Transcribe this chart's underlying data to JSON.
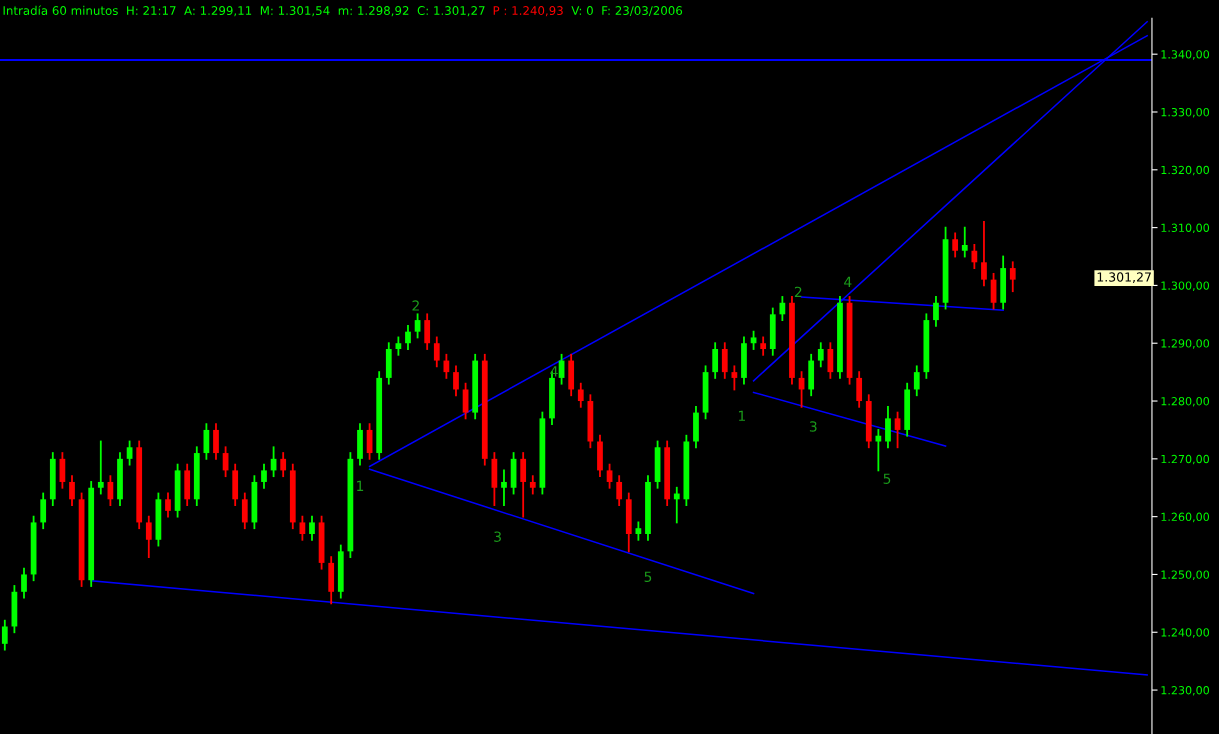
{
  "chart_data": {
    "type": "candlestick",
    "title": "Intradía 60 minutos  H: 21:17  A: 1.299,11  M: 1.301,54  m: 1.298,92  C: 1.301,27",
    "categories": [
      null,
      null,
      null,
      null,
      null,
      null,
      null,
      null,
      null,
      null,
      null,
      null,
      null,
      null,
      null,
      null,
      null,
      null,
      null,
      null,
      null,
      null,
      null,
      null,
      null,
      null,
      null,
      null,
      null,
      null,
      null,
      null,
      null,
      null,
      null,
      null,
      null,
      null,
      null,
      null,
      null,
      null,
      null,
      null,
      null,
      null,
      null,
      null,
      null,
      null,
      null,
      null,
      null,
      null,
      null,
      null,
      null,
      null,
      null,
      null,
      null,
      null,
      null,
      null,
      null,
      null,
      null,
      null,
      null,
      null,
      null,
      null,
      null,
      null,
      null,
      null,
      null,
      null,
      null,
      null,
      null,
      null,
      null,
      null,
      null,
      null,
      null,
      null,
      null,
      null,
      null,
      null,
      null,
      null,
      null,
      null,
      null,
      null,
      null,
      null,
      null,
      null,
      null,
      null,
      null,
      null,
      null,
      null,
      null,
      null,
      null,
      null,
      null,
      null,
      null,
      null,
      null,
      null,
      null,
      null
    ],
    "ohlc": [
      [
        1238,
        1242,
        1237,
        1241
      ],
      [
        1241,
        1248,
        1240,
        1247
      ],
      [
        1247,
        1251,
        1246,
        1250
      ],
      [
        1250,
        1260,
        1249,
        1259
      ],
      [
        1259,
        1264,
        1258,
        1263
      ],
      [
        1263,
        1271,
        1262,
        1270
      ],
      [
        1270,
        1271,
        1265,
        1266
      ],
      [
        1266,
        1267,
        1262,
        1263
      ],
      [
        1263,
        1264,
        1248,
        1249
      ],
      [
        1249,
        1266,
        1248,
        1265
      ],
      [
        1265,
        1273,
        1264,
        1266
      ],
      [
        1266,
        1267,
        1262,
        1263
      ],
      [
        1263,
        1271,
        1262,
        1270
      ],
      [
        1270,
        1273,
        1269,
        1272
      ],
      [
        1272,
        1273,
        1258,
        1259
      ],
      [
        1259,
        1260,
        1253,
        1256
      ],
      [
        1256,
        1264,
        1255,
        1263
      ],
      [
        1263,
        1264,
        1260,
        1261
      ],
      [
        1261,
        1269,
        1260,
        1268
      ],
      [
        1268,
        1269,
        1262,
        1263
      ],
      [
        1263,
        1272,
        1262,
        1271
      ],
      [
        1271,
        1276,
        1270,
        1275
      ],
      [
        1275,
        1276,
        1270,
        1271
      ],
      [
        1271,
        1272,
        1267,
        1268
      ],
      [
        1268,
        1269,
        1262,
        1263
      ],
      [
        1263,
        1264,
        1258,
        1259
      ],
      [
        1259,
        1267,
        1258,
        1266
      ],
      [
        1266,
        1269,
        1265,
        1268
      ],
      [
        1268,
        1272,
        1267,
        1270
      ],
      [
        1270,
        1271,
        1267,
        1268
      ],
      [
        1268,
        1269,
        1258,
        1259
      ],
      [
        1259,
        1260,
        1256,
        1257
      ],
      [
        1257,
        1260,
        1256,
        1259
      ],
      [
        1259,
        1260,
        1251,
        1252
      ],
      [
        1252,
        1253,
        1245,
        1247
      ],
      [
        1247,
        1255,
        1246,
        1254
      ],
      [
        1254,
        1271,
        1253,
        1270
      ],
      [
        1270,
        1276,
        1269,
        1275
      ],
      [
        1275,
        1276,
        1270,
        1271
      ],
      [
        1271,
        1285,
        1270,
        1284
      ],
      [
        1284,
        1290,
        1283,
        1289
      ],
      [
        1289,
        1291,
        1288,
        1290
      ],
      [
        1290,
        1293,
        1289,
        1292
      ],
      [
        1292,
        1295,
        1291,
        1294
      ],
      [
        1294,
        1295,
        1289,
        1290
      ],
      [
        1290,
        1291,
        1286,
        1287
      ],
      [
        1287,
        1288,
        1284,
        1285
      ],
      [
        1285,
        1286,
        1281,
        1282
      ],
      [
        1282,
        1283,
        1277,
        1278
      ],
      [
        1278,
        1288,
        1277,
        1287
      ],
      [
        1287,
        1288,
        1269,
        1270
      ],
      [
        1270,
        1271,
        1262,
        1265
      ],
      [
        1265,
        1268,
        1262,
        1266
      ],
      [
        1265,
        1271,
        1264,
        1270
      ],
      [
        1270,
        1271,
        1260,
        1266
      ],
      [
        1266,
        1267,
        1264,
        1265
      ],
      [
        1265,
        1278,
        1264,
        1277
      ],
      [
        1277,
        1285,
        1276,
        1284
      ],
      [
        1284,
        1288,
        1283,
        1287
      ],
      [
        1287,
        1288,
        1281,
        1282
      ],
      [
        1282,
        1283,
        1279,
        1280
      ],
      [
        1280,
        1281,
        1272,
        1273
      ],
      [
        1273,
        1274,
        1267,
        1268
      ],
      [
        1268,
        1269,
        1265,
        1266
      ],
      [
        1266,
        1267,
        1262,
        1263
      ],
      [
        1263,
        1264,
        1254,
        1257
      ],
      [
        1257,
        1259,
        1256,
        1258
      ],
      [
        1257,
        1267,
        1256,
        1266
      ],
      [
        1266,
        1273,
        1265,
        1272
      ],
      [
        1272,
        1273,
        1262,
        1263
      ],
      [
        1263,
        1265,
        1259,
        1264
      ],
      [
        1263,
        1274,
        1262,
        1273
      ],
      [
        1273,
        1279,
        1272,
        1278
      ],
      [
        1278,
        1286,
        1277,
        1285
      ],
      [
        1285,
        1290,
        1284,
        1289
      ],
      [
        1289,
        1290,
        1284,
        1285
      ],
      [
        1285,
        1286,
        1282,
        1284
      ],
      [
        1284,
        1291,
        1283,
        1290
      ],
      [
        1290,
        1292,
        1289,
        1291
      ],
      [
        1290,
        1291,
        1288,
        1289
      ],
      [
        1289,
        1296,
        1288,
        1295
      ],
      [
        1295,
        1298,
        1294,
        1297
      ],
      [
        1297,
        1298,
        1283,
        1284
      ],
      [
        1284,
        1285,
        1279,
        1282
      ],
      [
        1282,
        1288,
        1281,
        1287
      ],
      [
        1287,
        1290,
        1286,
        1289
      ],
      [
        1289,
        1290,
        1284,
        1285
      ],
      [
        1285,
        1298,
        1284,
        1297
      ],
      [
        1297,
        1298,
        1283,
        1284
      ],
      [
        1284,
        1285,
        1279,
        1280
      ],
      [
        1280,
        1281,
        1272,
        1273
      ],
      [
        1273,
        1275,
        1268,
        1274
      ],
      [
        1273,
        1279,
        1272,
        1277
      ],
      [
        1277,
        1278,
        1272,
        1275
      ],
      [
        1275,
        1283,
        1274,
        1282
      ],
      [
        1282,
        1286,
        1281,
        1285
      ],
      [
        1285,
        1295,
        1284,
        1294
      ],
      [
        1294,
        1298,
        1293,
        1297
      ],
      [
        1297,
        1310,
        1296,
        1308
      ],
      [
        1308,
        1309,
        1305,
        1306
      ],
      [
        1306,
        1310,
        1305,
        1307
      ],
      [
        1306,
        1307,
        1303,
        1304
      ],
      [
        1304,
        1311,
        1300,
        1301
      ],
      [
        1301,
        1302,
        1296,
        1297
      ],
      [
        1297,
        1305,
        1296,
        1303
      ],
      [
        1303,
        1304,
        1299,
        1301
      ],
      null,
      null,
      null,
      null,
      null,
      null,
      null,
      null,
      null,
      null,
      null,
      null,
      null,
      null
    ],
    "colors": [
      "#00ff00",
      "#00ff00",
      "#00ff00",
      "#00ff00",
      "#00ff00",
      "#00ff00",
      "#ff0000",
      "#ff0000",
      "#ff0000",
      "#00ff00",
      "#00ff00",
      "#ff0000",
      "#00ff00",
      "#00ff00",
      "#ff0000",
      "#ff0000",
      "#00ff00",
      "#ff0000",
      "#00ff00",
      "#ff0000",
      "#00ff00",
      "#00ff00",
      "#ff0000",
      "#ff0000",
      "#ff0000",
      "#ff0000",
      "#00ff00",
      "#00ff00",
      "#00ff00",
      "#ff0000",
      "#ff0000",
      "#ff0000",
      "#00ff00",
      "#ff0000",
      "#ff0000",
      "#00ff00",
      "#00ff00",
      "#00ff00",
      "#ff0000",
      "#00ff00",
      "#00ff00",
      "#00ff00",
      "#00ff00",
      "#00ff00",
      "#ff0000",
      "#ff0000",
      "#ff0000",
      "#ff0000",
      "#ff0000",
      "#00ff00",
      "#ff0000",
      "#ff0000",
      "#00ff00",
      "#00ff00",
      "#ff0000",
      "#ff0000",
      "#00ff00",
      "#00ff00",
      "#00ff00",
      "#ff0000",
      "#ff0000",
      "#ff0000",
      "#ff0000",
      "#ff0000",
      "#ff0000",
      "#ff0000",
      "#00ff00",
      "#00ff00",
      "#00ff00",
      "#ff0000",
      "#00ff00",
      "#00ff00",
      "#00ff00",
      "#00ff00",
      "#00ff00",
      "#ff0000",
      "#ff0000",
      "#00ff00",
      "#00ff00",
      "#ff0000",
      "#00ff00",
      "#00ff00",
      "#ff0000",
      "#ff0000",
      "#00ff00",
      "#00ff00",
      "#ff0000",
      "#00ff00",
      "#ff0000",
      "#ff0000",
      "#ff0000",
      "#00ff00",
      "#00ff00",
      "#ff0000",
      "#00ff00",
      "#00ff00",
      "#00ff00",
      "#00ff00",
      "#00ff00",
      "#ff0000",
      "#00ff00",
      "#ff0000",
      "#ff0000",
      "#ff0000",
      "#00ff00",
      "#ff0000",
      null,
      null,
      null,
      null,
      null,
      null,
      null,
      null,
      null,
      null,
      null,
      null,
      null,
      null
    ],
    "series": [
      {
        "type": "line",
        "color": "#0000ff",
        "values": [
          null,
          null,
          null,
          null,
          null,
          null,
          null,
          null,
          null,
          1248.9,
          null,
          null,
          null,
          null,
          null,
          null,
          null,
          null,
          null,
          null,
          null,
          null,
          null,
          null,
          null,
          null,
          null,
          null,
          null,
          null,
          null,
          null,
          null,
          null,
          null,
          null,
          null,
          null,
          null,
          null,
          null,
          null,
          null,
          null,
          null,
          null,
          null,
          null,
          null,
          null,
          null,
          null,
          null,
          null,
          null,
          null,
          null,
          null,
          null,
          null,
          null,
          null,
          null,
          null,
          null,
          null,
          null,
          null,
          null,
          null,
          null,
          null,
          null,
          null,
          null,
          null,
          null,
          null,
          null,
          null,
          null,
          null,
          null,
          null,
          null,
          null,
          null,
          null,
          null,
          null,
          null,
          null,
          null,
          null,
          null,
          null,
          null,
          null,
          null,
          null,
          null,
          null,
          null,
          null,
          null,
          null,
          null,
          null,
          null,
          null,
          null,
          null,
          null,
          null,
          null,
          null,
          null,
          null,
          null,
          1232.6
        ]
      },
      {
        "type": "line",
        "color": "#0000ff",
        "values": [
          null,
          null,
          null,
          null,
          null,
          null,
          null,
          null,
          null,
          null,
          null,
          null,
          null,
          null,
          null,
          null,
          null,
          null,
          null,
          null,
          null,
          null,
          null,
          null,
          null,
          null,
          null,
          null,
          null,
          null,
          null,
          null,
          null,
          null,
          null,
          null,
          null,
          null,
          1268.2,
          null,
          null,
          null,
          null,
          null,
          null,
          null,
          null,
          null,
          null,
          null,
          null,
          null,
          null,
          null,
          null,
          null,
          null,
          null,
          null,
          null,
          null,
          null,
          null,
          null,
          null,
          null,
          null,
          null,
          null,
          null,
          null,
          null,
          null,
          null,
          null,
          null,
          null,
          null,
          1246.7,
          null,
          null,
          null,
          null,
          null,
          null,
          null,
          null,
          null,
          null,
          null,
          null,
          null,
          null,
          null,
          null,
          null,
          null,
          null,
          null,
          null,
          null,
          null,
          null,
          null,
          null,
          null,
          null,
          null,
          null,
          null,
          null,
          null,
          null,
          null,
          null,
          null,
          null,
          null,
          null,
          null
        ]
      },
      {
        "type": "line",
        "color": "#0000ff",
        "values": [
          null,
          null,
          null,
          null,
          null,
          null,
          null,
          null,
          null,
          null,
          null,
          null,
          null,
          null,
          null,
          null,
          null,
          null,
          null,
          null,
          null,
          null,
          null,
          null,
          null,
          null,
          null,
          null,
          null,
          null,
          null,
          null,
          null,
          null,
          null,
          null,
          null,
          null,
          1268.7,
          null,
          null,
          null,
          null,
          null,
          null,
          null,
          null,
          null,
          null,
          null,
          null,
          null,
          null,
          null,
          null,
          null,
          null,
          null,
          null,
          null,
          null,
          null,
          null,
          null,
          null,
          null,
          null,
          null,
          null,
          null,
          null,
          null,
          null,
          null,
          null,
          null,
          null,
          null,
          null,
          null,
          null,
          null,
          null,
          null,
          null,
          null,
          null,
          null,
          null,
          null,
          null,
          null,
          null,
          null,
          null,
          null,
          null,
          null,
          null,
          null,
          null,
          null,
          null,
          null,
          null,
          null,
          null,
          null,
          null,
          null,
          null,
          null,
          null,
          null,
          null,
          null,
          null,
          null,
          null,
          1343.2
        ]
      },
      {
        "type": "line",
        "color": "#0000ff",
        "values": [
          null,
          null,
          null,
          null,
          null,
          null,
          null,
          null,
          null,
          null,
          null,
          null,
          null,
          null,
          null,
          null,
          null,
          null,
          null,
          null,
          null,
          null,
          null,
          null,
          null,
          null,
          null,
          null,
          null,
          null,
          null,
          null,
          null,
          null,
          null,
          null,
          null,
          null,
          null,
          null,
          null,
          null,
          null,
          null,
          null,
          null,
          null,
          null,
          null,
          null,
          null,
          null,
          null,
          null,
          null,
          null,
          null,
          null,
          null,
          null,
          null,
          null,
          null,
          null,
          null,
          null,
          null,
          null,
          null,
          null,
          null,
          null,
          null,
          null,
          null,
          null,
          null,
          null,
          1283.5,
          null,
          null,
          null,
          null,
          null,
          null,
          null,
          null,
          null,
          null,
          null,
          null,
          null,
          null,
          null,
          null,
          null,
          null,
          null,
          null,
          null,
          null,
          null,
          null,
          null,
          null,
          null,
          null,
          null,
          null,
          null,
          null,
          null,
          null,
          null,
          null,
          null,
          null,
          null,
          null,
          1345.6
        ]
      },
      {
        "type": "line",
        "color": "#0000ff",
        "values": [
          null,
          null,
          null,
          null,
          null,
          null,
          null,
          null,
          null,
          null,
          null,
          null,
          null,
          null,
          null,
          null,
          null,
          null,
          null,
          null,
          null,
          null,
          null,
          null,
          null,
          null,
          null,
          null,
          null,
          null,
          null,
          null,
          null,
          null,
          null,
          null,
          null,
          null,
          null,
          null,
          null,
          null,
          null,
          null,
          null,
          null,
          null,
          null,
          null,
          null,
          null,
          null,
          null,
          null,
          null,
          null,
          null,
          null,
          null,
          null,
          null,
          null,
          null,
          null,
          null,
          null,
          null,
          null,
          null,
          null,
          null,
          null,
          null,
          null,
          null,
          null,
          null,
          null,
          1281.5,
          null,
          null,
          null,
          null,
          null,
          null,
          null,
          null,
          null,
          null,
          null,
          null,
          null,
          null,
          null,
          null,
          null,
          null,
          null,
          1272.2,
          null,
          null,
          null,
          null,
          null,
          null,
          null,
          null,
          null,
          null,
          null,
          null,
          null,
          null,
          null,
          null,
          null,
          null,
          null,
          null,
          null
        ]
      },
      {
        "type": "line",
        "color": "#0000ff",
        "values": [
          null,
          null,
          null,
          null,
          null,
          null,
          null,
          null,
          null,
          null,
          null,
          null,
          null,
          null,
          null,
          null,
          null,
          null,
          null,
          null,
          null,
          null,
          null,
          null,
          null,
          null,
          null,
          null,
          null,
          null,
          null,
          null,
          null,
          null,
          null,
          null,
          null,
          null,
          null,
          null,
          null,
          null,
          null,
          null,
          null,
          null,
          null,
          null,
          null,
          null,
          null,
          null,
          null,
          null,
          null,
          null,
          null,
          null,
          null,
          null,
          null,
          null,
          null,
          null,
          null,
          null,
          null,
          null,
          null,
          null,
          null,
          null,
          null,
          null,
          null,
          null,
          null,
          null,
          null,
          null,
          null,
          null,
          null,
          1298.0,
          null,
          null,
          null,
          null,
          null,
          null,
          null,
          null,
          null,
          null,
          null,
          null,
          null,
          null,
          null,
          null,
          null,
          null,
          null,
          null,
          1295.7,
          null,
          null,
          null,
          null,
          null,
          null,
          null,
          null,
          null,
          null,
          null,
          null,
          null,
          null,
          null
        ]
      }
    ],
    "ref_lines": [
      {
        "axis": "y",
        "value": 1339,
        "color": "#0000ff"
      }
    ],
    "annotations": [
      "P : 1.240,93",
      "V: 0  F: 23/03/2006",
      "1.301,27",
      "1",
      "2",
      "3",
      "4",
      "5",
      "1",
      "2",
      "3",
      "4",
      "5"
    ],
    "ylim": [
      1222.4,
      1346.2
    ],
    "yticks": [
      {
        "value": 1230,
        "label": "1.230,00"
      },
      {
        "value": 1240,
        "label": "1.240,00"
      },
      {
        "value": 1250,
        "label": "1.250,00"
      },
      {
        "value": 1260,
        "label": "1.260,00"
      },
      {
        "value": 1270,
        "label": "1.270,00"
      },
      {
        "value": 1280,
        "label": "1.280,00"
      },
      {
        "value": 1290,
        "label": "1.290,00"
      },
      {
        "value": 1300,
        "label": "1.300,00"
      },
      {
        "value": 1310,
        "label": "1.310,00"
      },
      {
        "value": 1320,
        "label": "1.320,00"
      },
      {
        "value": 1330,
        "label": "1.330,00"
      },
      {
        "value": 1340,
        "label": "1.340,00"
      }
    ],
    "tick_labels": "y",
    "grid": false,
    "legend": false
  }
}
